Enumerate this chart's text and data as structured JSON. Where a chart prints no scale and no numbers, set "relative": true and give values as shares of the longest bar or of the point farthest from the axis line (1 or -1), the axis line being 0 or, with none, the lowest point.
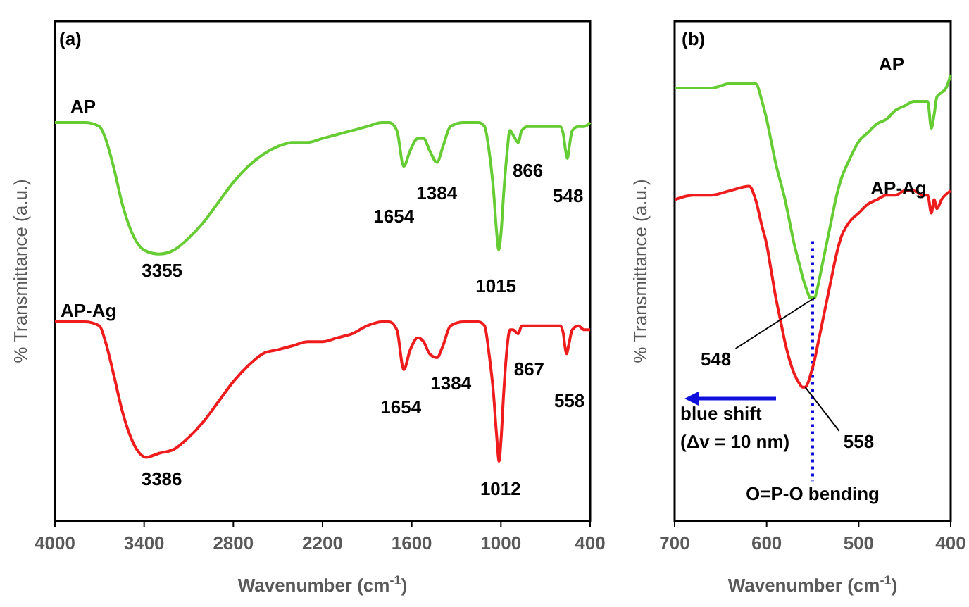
{
  "chart_data": [
    {
      "type": "line",
      "xlabel": "Wavenumber (cm$^{-1}$)",
      "ylabel": "% Transmittance (a.u.)",
      "relative": true,
      "xlim": [
        4000,
        400
      ],
      "xticks": [
        4000,
        3400,
        2800,
        2200,
        1600,
        1000,
        400
      ],
      "marker": "none",
      "line_style": "solid",
      "grid": false,
      "annotations": [
        "(a)",
        {
          "text": "3355",
          "x": 3355,
          "y": 0.67
        },
        {
          "text": "1654",
          "x": 1654,
          "y": 0.89
        },
        {
          "text": "1384",
          "x": 1384,
          "y": 0.9
        },
        {
          "text": "1015",
          "x": 1015,
          "y": 0.68
        },
        {
          "text": "866",
          "x": 866,
          "y": 0.96
        },
        {
          "text": "548",
          "x": 548,
          "y": 0.91
        },
        {
          "text": "3386",
          "x": 3386,
          "y": 0.16
        },
        {
          "text": "1654",
          "x": 1654,
          "y": 0.38
        },
        {
          "text": "1384",
          "x": 1384,
          "y": 0.43
        },
        {
          "text": "1012",
          "x": 1012,
          "y": 0.15
        },
        {
          "text": "867",
          "x": 867,
          "y": 0.49
        },
        {
          "text": "558",
          "x": 558,
          "y": 0.42
        }
      ],
      "series": [
        {
          "name": "AP",
          "color": "#66cc33",
          "x": [
            4000,
            3800,
            3700,
            3660,
            3600,
            3550,
            3500,
            3450,
            3400,
            3300,
            3200,
            3100,
            3000,
            2900,
            2800,
            2700,
            2600,
            2500,
            2400,
            2300,
            2200,
            2100,
            2000,
            1900,
            1800,
            1750,
            1700,
            1654,
            1610,
            1560,
            1520,
            1480,
            1430,
            1390,
            1340,
            1250,
            1150,
            1110,
            1080,
            1050,
            1030,
            1015,
            1000,
            980,
            960,
            940,
            920,
            884,
            860,
            820,
            750,
            650,
            600,
            580,
            565,
            553,
            540,
            520,
            480,
            440,
            400
          ],
          "values": [
            1.0,
            1.0,
            0.99,
            0.96,
            0.88,
            0.8,
            0.74,
            0.7,
            0.68,
            0.67,
            0.68,
            0.71,
            0.75,
            0.8,
            0.85,
            0.89,
            0.92,
            0.94,
            0.95,
            0.95,
            0.96,
            0.97,
            0.98,
            0.99,
            1.0,
            1.0,
            0.98,
            0.89,
            0.93,
            0.96,
            0.96,
            0.93,
            0.9,
            0.94,
            0.99,
            1.0,
            1.0,
            0.99,
            0.93,
            0.83,
            0.73,
            0.68,
            0.72,
            0.83,
            0.92,
            0.98,
            0.97,
            0.95,
            0.98,
            0.99,
            0.99,
            0.99,
            0.99,
            0.97,
            0.93,
            0.91,
            0.94,
            0.98,
            0.99,
            0.99,
            1.0
          ]
        },
        {
          "name": "AP-Ag",
          "color": "#ee1c1c",
          "x": [
            4000,
            3800,
            3700,
            3660,
            3600,
            3550,
            3500,
            3450,
            3386,
            3300,
            3200,
            3100,
            3000,
            2900,
            2800,
            2700,
            2600,
            2500,
            2400,
            2300,
            2200,
            2100,
            2000,
            1900,
            1800,
            1750,
            1700,
            1654,
            1610,
            1560,
            1520,
            1480,
            1430,
            1390,
            1340,
            1250,
            1150,
            1110,
            1080,
            1050,
            1030,
            1012,
            1000,
            980,
            960,
            940,
            920,
            884,
            860,
            820,
            750,
            650,
            600,
            580,
            570,
            558,
            545,
            520,
            480,
            440,
            400
          ],
          "values": [
            0.5,
            0.5,
            0.49,
            0.45,
            0.36,
            0.28,
            0.22,
            0.18,
            0.16,
            0.17,
            0.18,
            0.21,
            0.25,
            0.3,
            0.35,
            0.39,
            0.42,
            0.43,
            0.44,
            0.45,
            0.45,
            0.46,
            0.47,
            0.49,
            0.5,
            0.5,
            0.48,
            0.38,
            0.43,
            0.46,
            0.45,
            0.42,
            0.41,
            0.44,
            0.49,
            0.5,
            0.5,
            0.49,
            0.42,
            0.32,
            0.22,
            0.15,
            0.2,
            0.33,
            0.43,
            0.48,
            0.48,
            0.47,
            0.49,
            0.49,
            0.49,
            0.49,
            0.49,
            0.47,
            0.44,
            0.42,
            0.44,
            0.48,
            0.49,
            0.48,
            0.48
          ]
        }
      ]
    },
    {
      "type": "line",
      "xlabel": "Wavenumber (cm$^{-1}$)",
      "ylabel": "% Transmittance (a.u.)",
      "relative": true,
      "xlim": [
        700,
        400
      ],
      "xticks": [
        700,
        600,
        500,
        400
      ],
      "marker": "none",
      "line_style": "solid",
      "grid": false,
      "ref_lines": [
        {
          "axis": "x",
          "value": 550,
          "color": "#1010dd",
          "line_style": "dotted"
        }
      ],
      "annotations": [
        "(b)",
        {
          "text": "548",
          "x": 548,
          "y": 0.5
        },
        {
          "text": "558",
          "x": 558,
          "y": 0.3
        },
        "blue shift\n(Δv = 10 nm)",
        "O=P-O bending"
      ],
      "series": [
        {
          "name": "AP",
          "color": "#66cc33",
          "x": [
            700,
            680,
            660,
            640,
            625,
            612,
            605,
            600,
            595,
            590,
            585,
            580,
            575,
            570,
            565,
            560,
            555,
            553,
            548,
            545,
            540,
            535,
            530,
            525,
            520,
            510,
            500,
            490,
            480,
            470,
            460,
            450,
            440,
            430,
            425,
            421,
            418,
            415,
            410,
            405,
            400
          ],
          "values": [
            0.97,
            0.97,
            0.97,
            0.98,
            0.98,
            0.98,
            0.94,
            0.9,
            0.85,
            0.8,
            0.76,
            0.72,
            0.67,
            0.62,
            0.58,
            0.54,
            0.51,
            0.5,
            0.5,
            0.52,
            0.57,
            0.62,
            0.67,
            0.72,
            0.76,
            0.81,
            0.85,
            0.87,
            0.89,
            0.9,
            0.92,
            0.93,
            0.94,
            0.94,
            0.94,
            0.88,
            0.91,
            0.95,
            0.96,
            0.97,
            1.0
          ]
        },
        {
          "name": "AP-Ag",
          "color": "#ee1c1c",
          "x": [
            700,
            680,
            660,
            640,
            619,
            612,
            605,
            600,
            595,
            590,
            585,
            580,
            575,
            570,
            565,
            561,
            558,
            555,
            552,
            548,
            545,
            540,
            535,
            530,
            525,
            520,
            510,
            500,
            490,
            480,
            470,
            460,
            450,
            440,
            430,
            425,
            421,
            418,
            415,
            410,
            400
          ],
          "values": [
            0.72,
            0.73,
            0.73,
            0.74,
            0.75,
            0.72,
            0.66,
            0.62,
            0.56,
            0.5,
            0.45,
            0.4,
            0.36,
            0.33,
            0.31,
            0.3,
            0.3,
            0.31,
            0.33,
            0.36,
            0.39,
            0.44,
            0.49,
            0.54,
            0.59,
            0.63,
            0.67,
            0.69,
            0.71,
            0.72,
            0.73,
            0.73,
            0.74,
            0.74,
            0.73,
            0.73,
            0.69,
            0.72,
            0.7,
            0.72,
            0.74
          ]
        }
      ]
    }
  ]
}
